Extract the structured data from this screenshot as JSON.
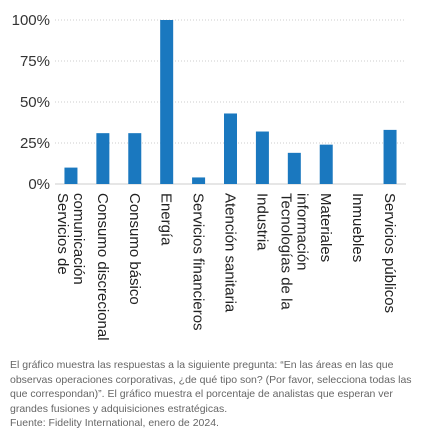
{
  "chart_data": {
    "type": "bar",
    "categories": [
      [
        "Servicios de",
        "comunicación"
      ],
      [
        "Consumo discrecional"
      ],
      [
        "Consumo básico"
      ],
      [
        "Energía"
      ],
      [
        "Servicios financieros"
      ],
      [
        "Atención sanitaria"
      ],
      [
        "Industria"
      ],
      [
        "Tecnologías de la",
        "información"
      ],
      [
        "Materiales"
      ],
      [
        "Inmuebles"
      ],
      [
        "Servicios públicos"
      ]
    ],
    "values": [
      10,
      31,
      31,
      100,
      4,
      43,
      32,
      19,
      24,
      0,
      33
    ],
    "ylim": [
      0,
      100
    ],
    "yticks": [
      "0%",
      "25%",
      "50%",
      "75%",
      "100%"
    ],
    "ytick_values": [
      0,
      25,
      50,
      75,
      100
    ],
    "grid": true,
    "bar_color": "#1a78bf",
    "grid_color": "#cccccc"
  },
  "caption": {
    "text": "El gráfico muestra las respuestas a la siguiente pregunta: “En las áreas en las que observas operaciones corporativas, ¿de qué tipo son? (Por favor, selecciona todas las que correspondan)”. El gráfico muestra el porcentaje de analistas que esperan ver grandes fusiones y adquisiciones estratégicas.",
    "source": "Fuente: Fidelity International, enero de 2024."
  }
}
